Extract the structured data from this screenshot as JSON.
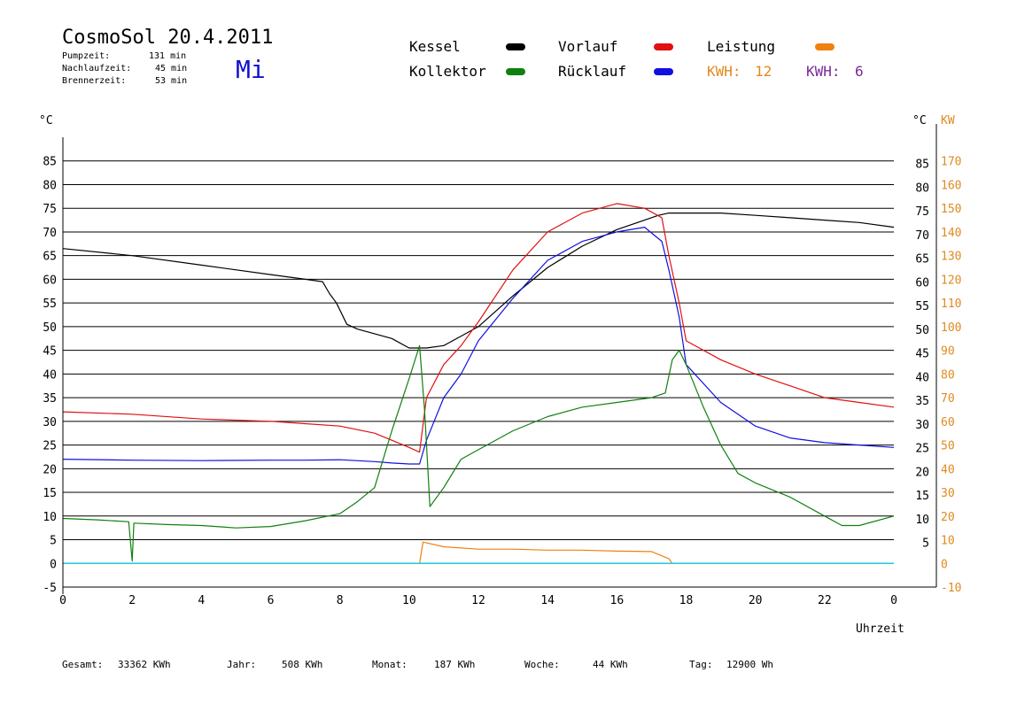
{
  "header": {
    "title": "CosmoSol 20.4.2011",
    "weekday": "Mi",
    "stats": [
      {
        "label": "Pumpzeit:",
        "value": "131 min"
      },
      {
        "label": "Nachlaufzeit:",
        "value": "45 min"
      },
      {
        "label": "Brennerzeit:",
        "value": "53 min"
      }
    ]
  },
  "legend": {
    "items": [
      {
        "name": "Kessel",
        "color": "#000000"
      },
      {
        "name": "Vorlauf",
        "color": "#e01010"
      },
      {
        "name": "Leistung",
        "color": "#f08010"
      },
      {
        "name": "Kollektor",
        "color": "#108010"
      },
      {
        "name": "Rücklauf",
        "color": "#1010e0"
      }
    ],
    "kwh_a": {
      "label": "KWH:",
      "value": "12",
      "color": "#e08a20"
    },
    "kwh_b": {
      "label": "KWH:",
      "value": "6",
      "color": "#7a2a9a"
    }
  },
  "footer": {
    "gesamt": {
      "label": "Gesamt:",
      "value": "33362 KWh"
    },
    "jahr": {
      "label": "Jahr:",
      "value": "508 KWh"
    },
    "monat": {
      "label": "Monat:",
      "value": "187 KWh"
    },
    "woche": {
      "label": "Woche:",
      "value": "44 KWh"
    },
    "tag": {
      "label": "Tag:",
      "value": "12900 Wh"
    }
  },
  "chart_data": {
    "type": "line",
    "xlabel": "Uhrzeit",
    "ylabel_left": "°C",
    "ylabel_right_1": "°C",
    "ylabel_right_2": "KW",
    "xlim": [
      0,
      24
    ],
    "ylim": [
      -5,
      90
    ],
    "grid": "horizontal",
    "x_ticks": [
      "0",
      "2",
      "4",
      "6",
      "8",
      "10",
      "12",
      "14",
      "16",
      "18",
      "20",
      "22",
      "0"
    ],
    "y_ticks_left": [
      "-5",
      "0",
      "5",
      "10",
      "15",
      "20",
      "25",
      "30",
      "35",
      "40",
      "45",
      "50",
      "55",
      "60",
      "65",
      "70",
      "75",
      "80",
      "85"
    ],
    "y_ticks_right_c": [
      "5",
      "10",
      "15",
      "20",
      "25",
      "30",
      "35",
      "40",
      "45",
      "50",
      "55",
      "60",
      "65",
      "70",
      "75",
      "80",
      "85"
    ],
    "y_ticks_right_kw": [
      "-10",
      "0",
      "10",
      "20",
      "30",
      "40",
      "50",
      "60",
      "70",
      "80",
      "90",
      "100",
      "110",
      "120",
      "130",
      "140",
      "150",
      "160",
      "170"
    ],
    "series": [
      {
        "name": "Kessel",
        "color": "#000000",
        "x": [
          0,
          2,
          4,
          6,
          7,
          7.5,
          7.7,
          7.9,
          8.2,
          8.5,
          9,
          9.5,
          10,
          10.5,
          11,
          11.5,
          12,
          13,
          14,
          15,
          16,
          16.8,
          17.2,
          17.5,
          18,
          19,
          20,
          21,
          22,
          23,
          24
        ],
        "y": [
          66.5,
          65,
          63,
          61,
          60,
          59.5,
          57,
          55,
          50.5,
          49.5,
          48.5,
          47.5,
          45.5,
          45.5,
          46,
          48,
          50,
          56.5,
          62.5,
          67,
          70.5,
          72.5,
          73.5,
          74,
          74,
          74,
          73.5,
          73,
          72.5,
          72,
          71
        ]
      },
      {
        "name": "Vorlauf",
        "color": "#e01010",
        "x": [
          0,
          2,
          4,
          6,
          7,
          8,
          9,
          9.5,
          10,
          10.3,
          10.5,
          11,
          11.5,
          12,
          13,
          14,
          15,
          16,
          16.8,
          17.3,
          17.5,
          17.8,
          18,
          19,
          20,
          21,
          22,
          23,
          24
        ],
        "y": [
          32,
          31.5,
          30.5,
          30,
          29.5,
          29,
          27.5,
          26,
          24.5,
          23.5,
          35,
          42,
          46,
          51,
          62,
          70,
          74,
          76,
          75,
          73,
          65,
          55,
          47,
          43,
          40,
          37.5,
          35,
          34,
          33
        ]
      },
      {
        "name": "Rücklauf",
        "color": "#1010e0",
        "x": [
          0,
          2,
          4,
          6,
          7,
          8,
          9,
          9.5,
          10,
          10.3,
          10.5,
          11,
          11.5,
          12,
          13,
          14,
          15,
          16,
          16.8,
          17.3,
          17.5,
          17.8,
          18,
          19,
          20,
          21,
          22,
          23,
          24
        ],
        "y": [
          22,
          21.8,
          21.7,
          21.8,
          21.8,
          21.9,
          21.5,
          21.2,
          21,
          21,
          26,
          35,
          40,
          47,
          56,
          64,
          68,
          70,
          71,
          68,
          62,
          52,
          42,
          34,
          29,
          26.5,
          25.5,
          25,
          24.5
        ]
      },
      {
        "name": "Kollektor",
        "color": "#108010",
        "x": [
          0,
          1,
          1.9,
          2,
          2.05,
          3,
          4,
          5,
          6,
          7,
          8,
          8.5,
          9,
          9.5,
          10,
          10.3,
          10.45,
          10.6,
          11,
          11.5,
          12,
          13,
          14,
          15,
          16,
          17,
          17.4,
          17.6,
          17.8,
          18,
          18.5,
          19,
          19.5,
          20,
          21,
          22,
          22.5,
          23,
          24
        ],
        "y": [
          9.5,
          9.2,
          8.8,
          0.5,
          8.5,
          8.2,
          8,
          7.5,
          7.8,
          9,
          10.5,
          13,
          16,
          28,
          39,
          46,
          32,
          12,
          16,
          22,
          24,
          28,
          31,
          33,
          34,
          35,
          36,
          43,
          45,
          42,
          33,
          25,
          19,
          17,
          14,
          10,
          8,
          8,
          10
        ]
      },
      {
        "name": "Leistung",
        "color": "#f08010",
        "x": [
          0,
          10.3,
          10.4,
          11,
          12,
          13,
          14,
          15,
          16,
          17,
          17.5,
          17.6,
          24
        ],
        "y": [
          0,
          0,
          4.5,
          3.5,
          3,
          3,
          2.8,
          2.8,
          2.6,
          2.5,
          1,
          0,
          0
        ]
      }
    ]
  }
}
